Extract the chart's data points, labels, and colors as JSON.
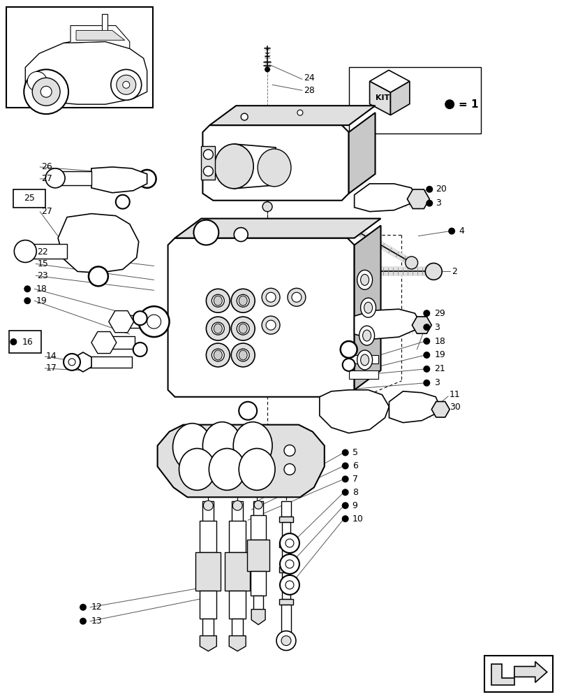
{
  "bg_color": "#ffffff",
  "figsize": [
    8.08,
    10.0
  ],
  "dpi": 100,
  "line_color": "#000000",
  "gray_fill": "#d8d8d8",
  "light_fill": "#f0f0f0"
}
